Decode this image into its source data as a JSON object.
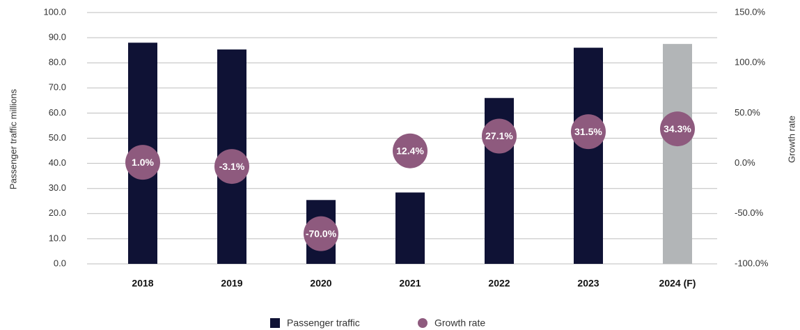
{
  "chart_data": {
    "type": "bar",
    "categories": [
      "2018",
      "2019",
      "2020",
      "2021",
      "2022",
      "2023",
      "2024 (F)"
    ],
    "ylabel": "Passenger traffic millions",
    "y2label": "Growth rate",
    "ylim": [
      0,
      100
    ],
    "yticks": [
      {
        "value": 0,
        "label": "0.0"
      },
      {
        "value": 10,
        "label": "10.0"
      },
      {
        "value": 20,
        "label": "20.0"
      },
      {
        "value": 30,
        "label": "30.0"
      },
      {
        "value": 40,
        "label": "40.0"
      },
      {
        "value": 50,
        "label": "50.0"
      },
      {
        "value": 60,
        "label": "60.0"
      },
      {
        "value": 70,
        "label": "70.0"
      },
      {
        "value": 80,
        "label": "80.0"
      },
      {
        "value": 90,
        "label": "90.0"
      },
      {
        "value": 100,
        "label": "100.0"
      }
    ],
    "y2lim": [
      -100,
      150
    ],
    "y2ticks": [
      {
        "value": -100,
        "label": "-100.0%"
      },
      {
        "value": -50,
        "label": "-50.0%"
      },
      {
        "value": 0,
        "label": "0.0%"
      },
      {
        "value": 50,
        "label": "50.0%"
      },
      {
        "value": 100,
        "label": "100.0%"
      },
      {
        "value": 150,
        "label": "150.0%"
      }
    ],
    "grid": true,
    "legend": "bottom",
    "series": [
      {
        "name": "Passenger traffic",
        "color": "#0f1235",
        "colors": [
          "#0f1235",
          "#0f1235",
          "#0f1235",
          "#0f1235",
          "#0f1235",
          "#0f1235",
          "#b2b5b7"
        ],
        "values": [
          88.0,
          85.3,
          25.4,
          28.4,
          66.0,
          86.0,
          87.5
        ]
      },
      {
        "name": "Growth rate",
        "type": "scatter",
        "axis": "y2",
        "color": "#8e5a7e",
        "values": [
          1.0,
          -3.1,
          -70.0,
          12.4,
          27.1,
          31.5,
          34.3
        ],
        "value_labels": [
          "1.0%",
          "-3.1%",
          "-70.0%",
          "12.4%",
          "27.1%",
          "31.5%",
          "34.3%"
        ]
      }
    ]
  }
}
